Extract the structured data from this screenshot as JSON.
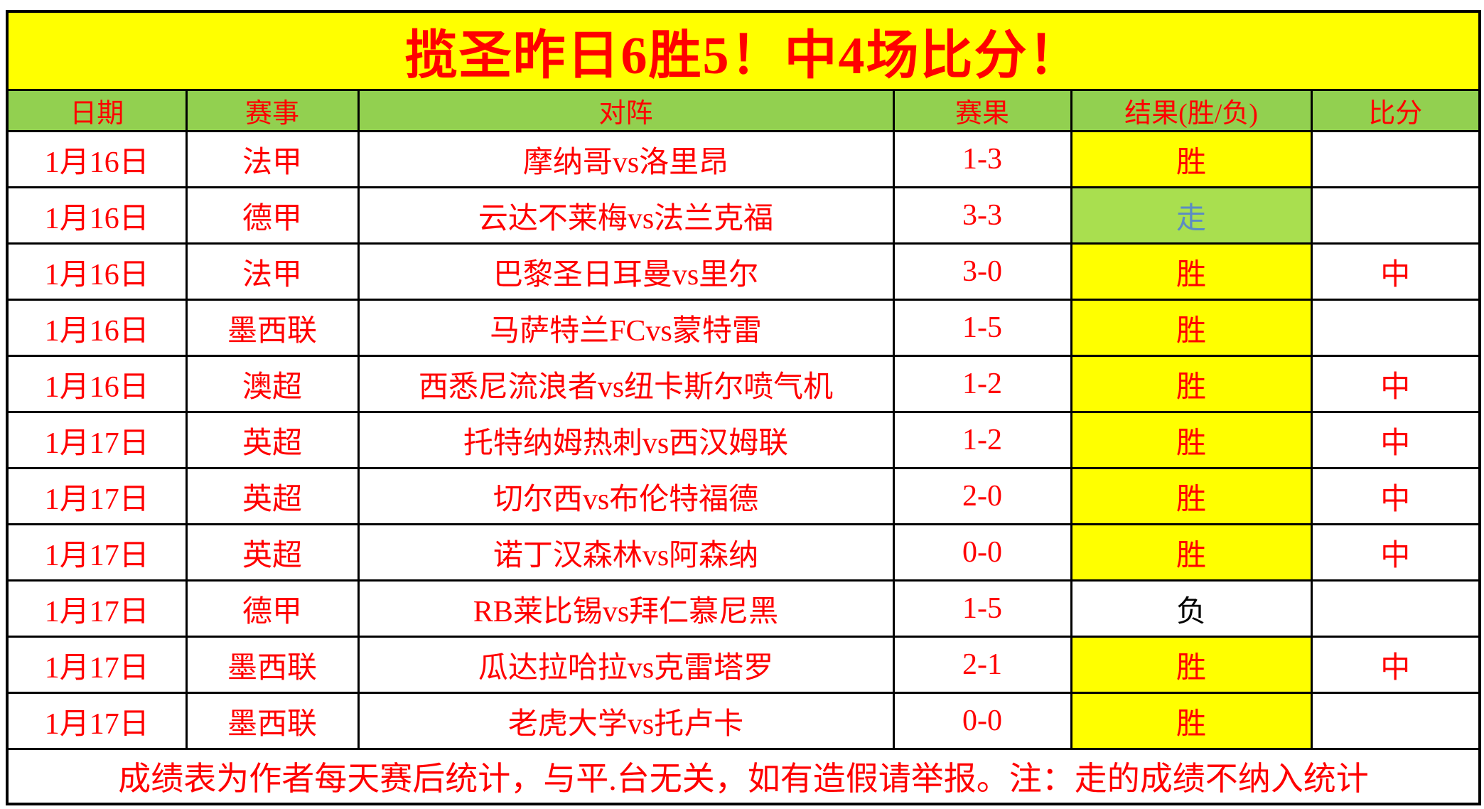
{
  "chart_data": {
    "type": "table",
    "title": "揽圣昨日6胜5！中4场比分！",
    "columns": [
      "日期",
      "赛事",
      "对阵",
      "赛果",
      "结果(胜/负)",
      "比分"
    ],
    "rows": [
      {
        "date": "1月16日",
        "league": "法甲",
        "match": "摩纳哥vs洛里昂",
        "score": "1-3",
        "result": "胜",
        "result_type": "win",
        "hit": ""
      },
      {
        "date": "1月16日",
        "league": "德甲",
        "match": "云达不莱梅vs法兰克福",
        "score": "3-3",
        "result": "走",
        "result_type": "push",
        "hit": ""
      },
      {
        "date": "1月16日",
        "league": "法甲",
        "match": "巴黎圣日耳曼vs里尔",
        "score": "3-0",
        "result": "胜",
        "result_type": "win",
        "hit": "中"
      },
      {
        "date": "1月16日",
        "league": "墨西联",
        "match": "马萨特兰FCvs蒙特雷",
        "score": "1-5",
        "result": "胜",
        "result_type": "win",
        "hit": ""
      },
      {
        "date": "1月16日",
        "league": "澳超",
        "match": "西悉尼流浪者vs纽卡斯尔喷气机",
        "score": "1-2",
        "result": "胜",
        "result_type": "win",
        "hit": "中"
      },
      {
        "date": "1月17日",
        "league": "英超",
        "match": "托特纳姆热刺vs西汉姆联",
        "score": "1-2",
        "result": "胜",
        "result_type": "win",
        "hit": "中"
      },
      {
        "date": "1月17日",
        "league": "英超",
        "match": "切尔西vs布伦特福德",
        "score": "2-0",
        "result": "胜",
        "result_type": "win",
        "hit": "中"
      },
      {
        "date": "1月17日",
        "league": "英超",
        "match": "诺丁汉森林vs阿森纳",
        "score": "0-0",
        "result": "胜",
        "result_type": "win",
        "hit": "中"
      },
      {
        "date": "1月17日",
        "league": "德甲",
        "match": "RB莱比锡vs拜仁慕尼黑",
        "score": "1-5",
        "result": "负",
        "result_type": "loss",
        "hit": ""
      },
      {
        "date": "1月17日",
        "league": "墨西联",
        "match": "瓜达拉哈拉vs克雷塔罗",
        "score": "2-1",
        "result": "胜",
        "result_type": "win",
        "hit": "中"
      },
      {
        "date": "1月17日",
        "league": "墨西联",
        "match": "老虎大学vs托卢卡",
        "score": "0-0",
        "result": "胜",
        "result_type": "win",
        "hit": ""
      }
    ],
    "footer_note": "成绩表为作者每天赛后统计，与平.台无关，如有造假请举报。注：走的成绩不纳入统计",
    "legend": {
      "win_label": "胜",
      "push_label": "走",
      "loss_label": "负",
      "hit_label": "中"
    }
  },
  "colors": {
    "banner_bg": "#FFFF00",
    "header_bg": "#92D050",
    "win_cell_bg": "#FFFF00",
    "push_cell_bg": "#A9DF4F",
    "text_red": "#FF0000",
    "push_text_blue": "#5B8BC4",
    "loss_text_black": "#000000",
    "border_black": "#000000"
  }
}
